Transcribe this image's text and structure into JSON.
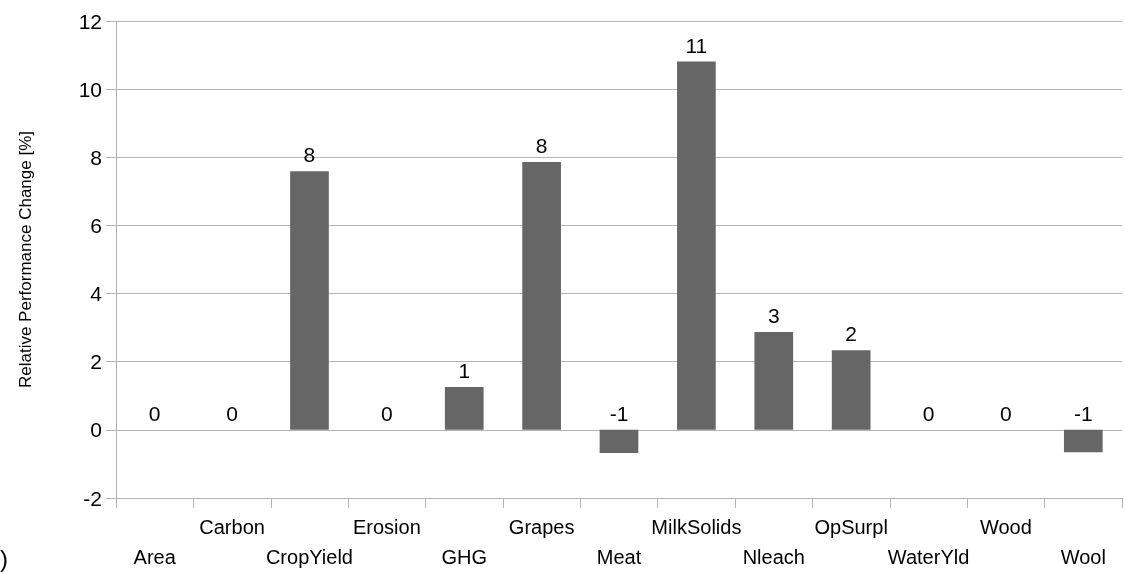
{
  "chart_data": {
    "type": "bar",
    "ylabel": "Relative Performance Change [%]",
    "categories": [
      "Area",
      "Carbon",
      "CropYield",
      "Erosion",
      "GHG",
      "Grapes",
      "Meat",
      "MilkSolids",
      "Nleach",
      "OpSurpl",
      "WaterYld",
      "Wood",
      "Wool"
    ],
    "values": [
      0,
      0,
      7.59,
      0,
      1.26,
      7.86,
      -0.68,
      10.81,
      2.87,
      2.34,
      0,
      0,
      -0.66
    ],
    "value_labels": [
      "0",
      "0",
      "8",
      "0",
      "1",
      "8",
      "-1",
      "11",
      "3",
      "2",
      "0",
      "0",
      "-1"
    ],
    "color": "#666666",
    "ylim": [
      -2,
      12
    ],
    "yticks": [
      -2,
      0,
      2,
      4,
      6,
      8,
      10,
      12
    ],
    "grid": "y",
    "annotations": [
      ")"
    ]
  }
}
